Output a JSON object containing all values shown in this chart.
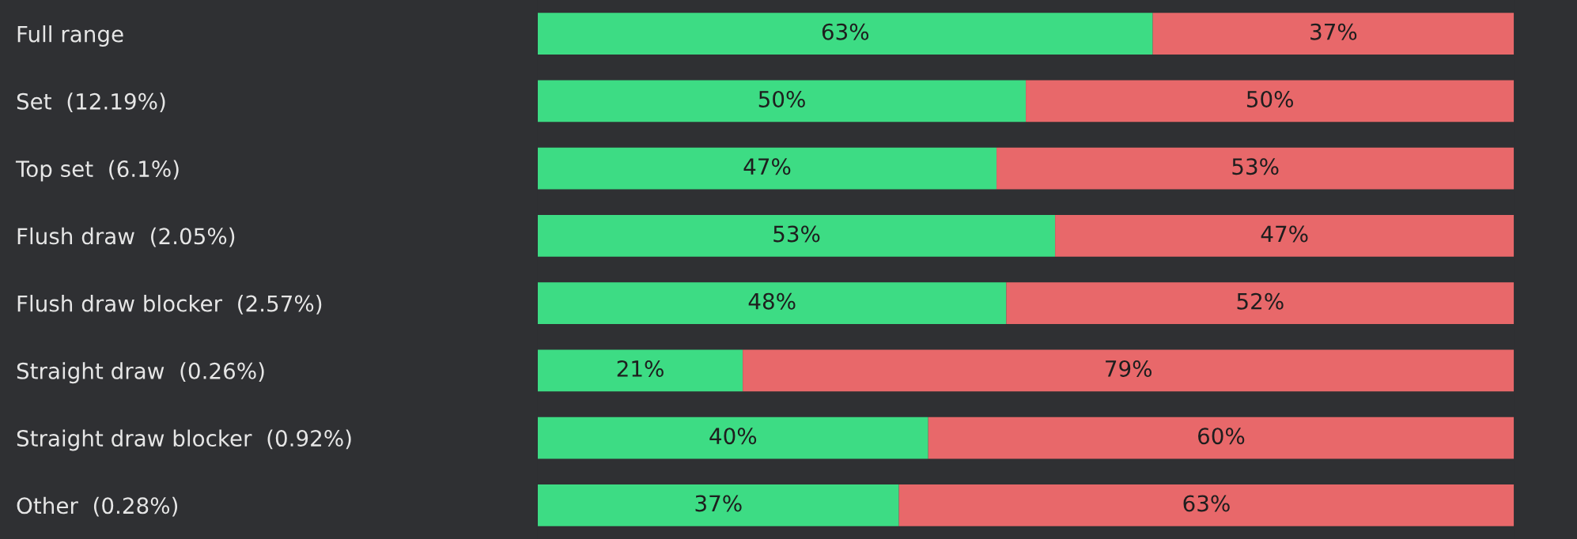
{
  "chart_data": {
    "type": "bar",
    "orientation": "horizontal",
    "stacked": true,
    "categories": [
      "Full range",
      "Set  (12.19%)",
      "Top set  (6.1%)",
      "Flush draw  (2.05%)",
      "Flush draw blocker  (2.57%)",
      "Straight draw  (0.26%)",
      "Straight draw blocker  (0.92%)",
      "Other  (0.28%)"
    ],
    "series": [
      {
        "color": "#3ddc84",
        "values": [
          63,
          50,
          47,
          53,
          48,
          21,
          40,
          37
        ],
        "value_labels": [
          "63%",
          "50%",
          "47%",
          "53%",
          "48%",
          "21%",
          "40%",
          "37%"
        ]
      },
      {
        "color": "#e8686a",
        "values": [
          37,
          50,
          53,
          47,
          52,
          79,
          60,
          63
        ],
        "value_labels": [
          "37%",
          "50%",
          "53%",
          "47%",
          "52%",
          "79%",
          "60%",
          "63%"
        ]
      }
    ],
    "xlim": [
      0,
      100
    ],
    "tick_labels": "y",
    "grid": false
  }
}
